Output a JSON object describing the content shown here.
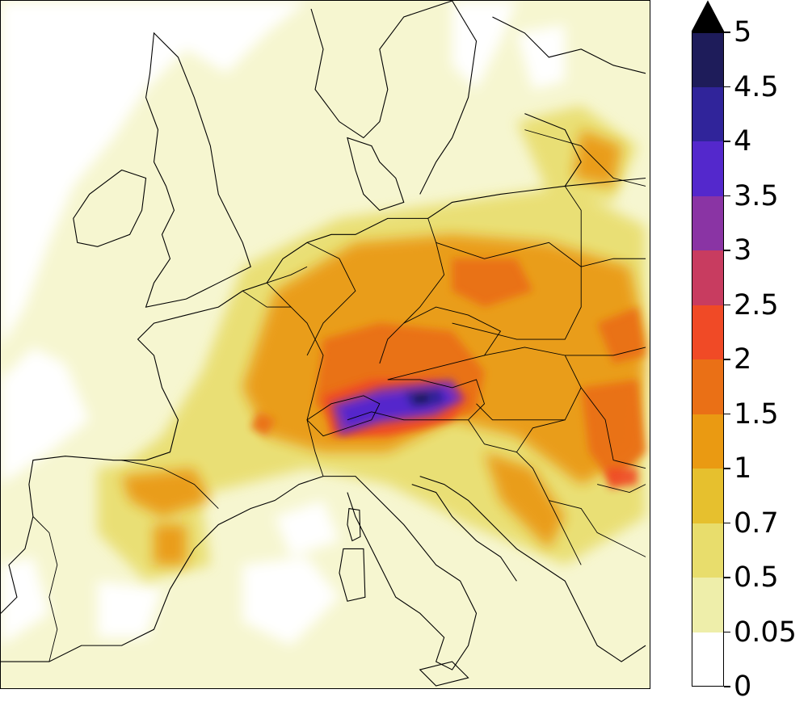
{
  "map": {
    "region": "Europe",
    "shading_colors": {
      "0.05-0.5": "#eeeeaa",
      "0.5-0.7": "#e8dd6c",
      "0.7-1": "#e6c02e",
      "1-1.5": "#ea9a12",
      "1.5-2": "#ea7016",
      "2-2.5": "#f04a26",
      "2.5-3": "#c83c60",
      "3-3.5": "#8a34a4",
      "3.5-4": "#5428cc",
      "4-4.5": "#30249a",
      "4.5-5": "#1e1c5a"
    }
  },
  "colorbar": {
    "ticks": [
      "0",
      "0.05",
      "0.5",
      "0.7",
      "1",
      "1.5",
      "2",
      "2.5",
      "3",
      "3.5",
      "4",
      "4.5",
      "5"
    ],
    "colors": [
      "#ffffff",
      "#eeeeaa",
      "#e8dd6c",
      "#e6c02e",
      "#ea9a12",
      "#ea7016",
      "#f04a26",
      "#c83c60",
      "#8a34a4",
      "#5428cc",
      "#30249a",
      "#1e1c5a"
    ],
    "extend_color": "#000000"
  }
}
